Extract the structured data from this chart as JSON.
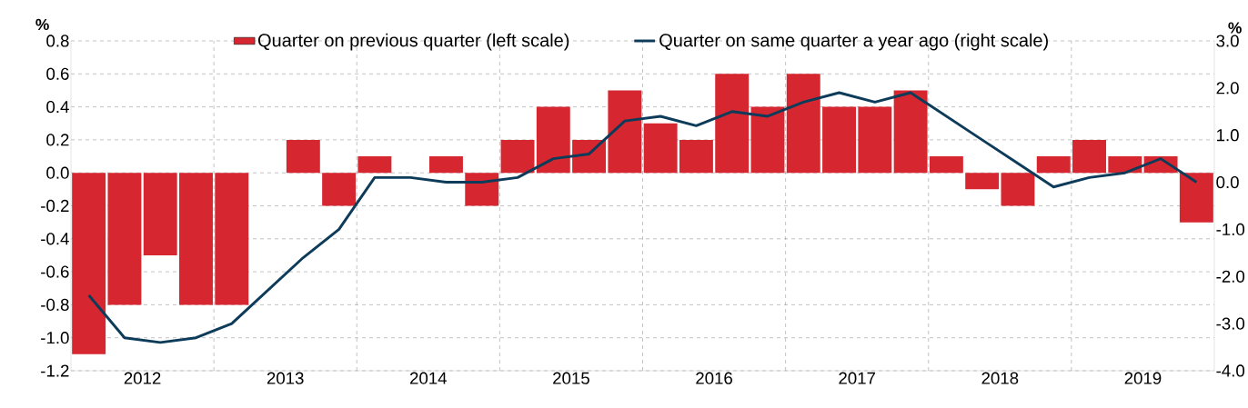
{
  "chart_data": {
    "type": "bar",
    "ylabel": "%",
    "y2label": "%",
    "x": [
      2012.125,
      2012.375,
      2012.625,
      2012.875,
      2013.125,
      2013.375,
      2013.625,
      2013.875,
      2014.125,
      2014.375,
      2014.625,
      2014.875,
      2015.125,
      2015.375,
      2015.625,
      2015.875,
      2016.125,
      2016.375,
      2016.625,
      2016.875,
      2017.125,
      2017.375,
      2017.625,
      2017.875,
      2018.125,
      2018.375,
      2018.625,
      2018.875,
      2019.125,
      2019.375,
      2019.625,
      2019.875
    ],
    "xlim": [
      2012,
      2020
    ],
    "xticks": [
      {
        "value": 2013,
        "label": null
      },
      {
        "value": 2014,
        "label": null
      },
      {
        "value": 2015,
        "label": null
      },
      {
        "value": 2016,
        "label": null
      },
      {
        "value": 2017,
        "label": null
      },
      {
        "value": 2018,
        "label": null
      },
      {
        "value": 2019,
        "label": null
      },
      {
        "value": 2012.5,
        "label": "2012"
      },
      {
        "value": 2013.5,
        "label": "2013"
      },
      {
        "value": 2014.5,
        "label": "2014"
      },
      {
        "value": 2015.5,
        "label": "2015"
      },
      {
        "value": 2016.5,
        "label": "2016"
      },
      {
        "value": 2017.5,
        "label": "2017"
      },
      {
        "value": 2018.5,
        "label": "2018"
      },
      {
        "value": 2019.5,
        "label": "2019"
      }
    ],
    "ylim": [
      -1.2,
      0.8
    ],
    "yticks": [
      {
        "value": -1.2,
        "label": "-1.2"
      },
      {
        "value": -1,
        "label": "-1.0"
      },
      -0.8,
      -0.6,
      -0.4,
      -0.2,
      {
        "value": 0,
        "label": "0.0"
      },
      0.2,
      0.4,
      0.6,
      0.8
    ],
    "y2lim": [
      -4,
      3
    ],
    "y2ticks": [
      {
        "value": -4,
        "label": "-4.0"
      },
      {
        "value": -3,
        "label": "-3.0"
      },
      {
        "value": -2,
        "label": "-2.0"
      },
      {
        "value": -1,
        "label": "-1.0"
      },
      {
        "value": 0,
        "label": "0.0"
      },
      {
        "value": 1,
        "label": "1.0"
      },
      {
        "value": 2,
        "label": "2.0"
      },
      {
        "value": 3,
        "label": "3.0"
      }
    ],
    "grid": true,
    "legend": "top",
    "series": [
      {
        "name": "Quarter on previous quarter (left scale)",
        "color": "#d62630",
        "values": [
          -1.1,
          -0.8,
          -0.5,
          -0.8,
          -0.8,
          0,
          0.2,
          -0.2,
          0.1,
          0,
          0.1,
          -0.2,
          0.2,
          0.4,
          0.2,
          0.5,
          0.3,
          0.2,
          0.6,
          0.4,
          0.6,
          0.4,
          0.4,
          0.5,
          0.1,
          -0.1,
          -0.2,
          0.1,
          0.2,
          0.1,
          0.1,
          -0.3
        ]
      },
      {
        "name": "Quarter on same quarter a year ago  (right scale)",
        "type": "line",
        "axis": "y2",
        "color": "#0d3b5a",
        "values": [
          -2.4,
          -3.3,
          -3.4,
          -3.3,
          -3.0,
          -2.3,
          -1.6,
          -1.0,
          0.1,
          0.1,
          0.0,
          0.0,
          0.1,
          0.5,
          0.6,
          1.3,
          1.4,
          1.2,
          1.5,
          1.4,
          1.7,
          1.9,
          1.7,
          1.9,
          1.4,
          0.9,
          0.4,
          -0.1,
          0.1,
          0.2,
          0.5,
          0.0
        ]
      }
    ]
  }
}
